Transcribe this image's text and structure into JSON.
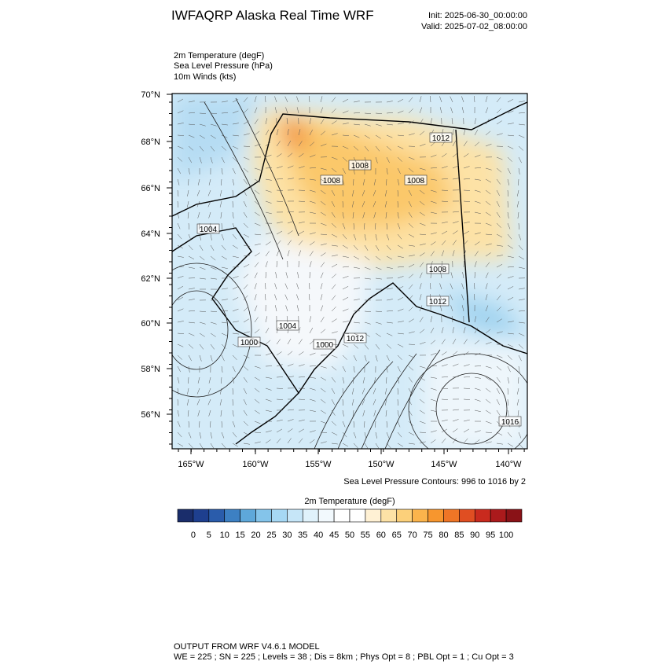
{
  "header": {
    "title": "IWFAQRP Alaska Real Time WRF",
    "init": "Init: 2025-06-30_00:00:00",
    "valid": "Valid: 2025-07-02_08:00:00"
  },
  "fields": [
    "2m Temperature   (degF)",
    "Sea Level Pressure   (hPa)",
    "10m Winds   (kts)"
  ],
  "map": {
    "lat_ticks": [
      "70°N",
      "68°N",
      "66°N",
      "64°N",
      "62°N",
      "60°N",
      "58°N",
      "56°N"
    ],
    "lon_ticks": [
      "165°W",
      "160°W",
      "155°W",
      "150°W",
      "145°W",
      "140°W"
    ],
    "contour_labels": [
      "1012",
      "1008",
      "1008",
      "1008",
      "1004",
      "1008",
      "1012",
      "1004",
      "1000",
      "1000",
      "1012",
      "1016"
    ]
  },
  "contour_note": "Sea Level Pressure Contours: 996 to 1016 by 2",
  "colorbar": {
    "title": "2m Temperature  (degF)",
    "ticks": [
      0,
      5,
      10,
      15,
      20,
      25,
      30,
      35,
      40,
      45,
      50,
      55,
      60,
      65,
      70,
      75,
      80,
      85,
      90,
      95,
      100
    ],
    "colors": [
      "#1a2d6b",
      "#1e3f8f",
      "#2a5cab",
      "#3d80c3",
      "#5ea8da",
      "#84c4ea",
      "#a6d8f4",
      "#c6e6f8",
      "#e0f2fb",
      "#f2f9fd",
      "#ffffff",
      "#ffffff",
      "#fff1d4",
      "#fde2a6",
      "#fcd07a",
      "#fbb44c",
      "#f7962e",
      "#ef7526",
      "#e04e22",
      "#c92a1e",
      "#ab1a1c",
      "#8a1217"
    ]
  },
  "footer": {
    "line1": "OUTPUT FROM WRF V4.6.1 MODEL",
    "line2": "WE = 225 ; SN = 225 ; Levels = 38 ; Dis = 8km ; Phys Opt = 8 ; PBL Opt = 1 ; Cu Opt = 3"
  }
}
